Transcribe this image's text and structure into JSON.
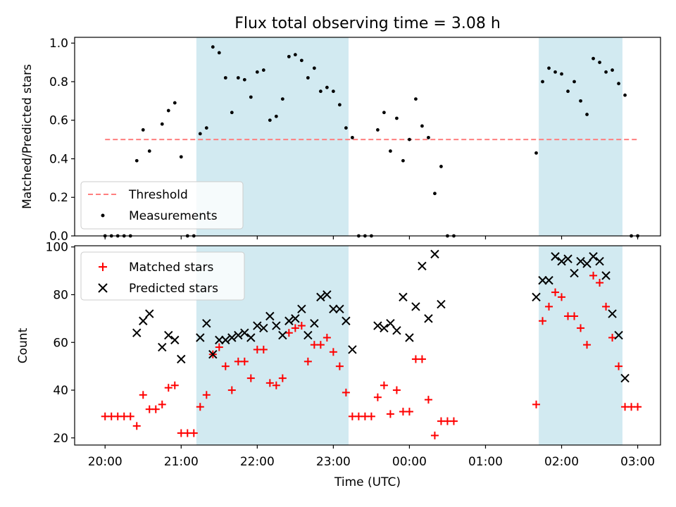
{
  "title": "Flux total observing time = 3.08 h",
  "colors": {
    "shade": "#add8e6",
    "threshold": "#ff7f7f",
    "matched": "#ff0000",
    "predicted": "#000000",
    "measurement": "#000000"
  },
  "chart_data": [
    {
      "type": "scatter",
      "panel": "top",
      "ylabel": "Matched/Predicted stars",
      "xlabel": "",
      "xlim_hours": [
        19.6,
        27.3
      ],
      "ylim": [
        0,
        1.03
      ],
      "yticks": [
        0.0,
        0.2,
        0.4,
        0.6,
        0.8,
        1.0
      ],
      "ytick_labels": [
        "0.0",
        "0.2",
        "0.4",
        "0.6",
        "0.8",
        "1.0"
      ],
      "grid": false,
      "legend_position": "lower-left",
      "shaded_spans": [
        {
          "start": "21:12",
          "end": "23:12"
        },
        {
          "start": "01:42",
          "end": "02:48"
        }
      ],
      "threshold": {
        "name": "Threshold",
        "value": 0.5,
        "x_start": "20:00",
        "x_end": "03:00",
        "style": "dashed"
      },
      "series": [
        {
          "name": "Measurements",
          "points": [
            [
              "20:00",
              0.0
            ],
            [
              "20:05",
              0.0
            ],
            [
              "20:10",
              0.0
            ],
            [
              "20:15",
              0.0
            ],
            [
              "20:20",
              0.0
            ],
            [
              "20:25",
              0.39
            ],
            [
              "20:30",
              0.55
            ],
            [
              "20:35",
              0.44
            ],
            [
              "20:45",
              0.58
            ],
            [
              "20:50",
              0.65
            ],
            [
              "20:55",
              0.69
            ],
            [
              "21:00",
              0.41
            ],
            [
              "21:05",
              0.0
            ],
            [
              "21:10",
              0.0
            ],
            [
              "21:15",
              0.53
            ],
            [
              "21:20",
              0.56
            ],
            [
              "21:25",
              0.98
            ],
            [
              "21:30",
              0.95
            ],
            [
              "21:35",
              0.82
            ],
            [
              "21:40",
              0.64
            ],
            [
              "21:45",
              0.82
            ],
            [
              "21:50",
              0.81
            ],
            [
              "21:55",
              0.72
            ],
            [
              "22:00",
              0.85
            ],
            [
              "22:05",
              0.86
            ],
            [
              "22:10",
              0.6
            ],
            [
              "22:15",
              0.62
            ],
            [
              "22:20",
              0.71
            ],
            [
              "22:25",
              0.93
            ],
            [
              "22:30",
              0.94
            ],
            [
              "22:35",
              0.91
            ],
            [
              "22:40",
              0.82
            ],
            [
              "22:45",
              0.87
            ],
            [
              "22:50",
              0.75
            ],
            [
              "22:55",
              0.77
            ],
            [
              "23:00",
              0.75
            ],
            [
              "23:05",
              0.68
            ],
            [
              "23:10",
              0.56
            ],
            [
              "23:15",
              0.51
            ],
            [
              "23:20",
              0.0
            ],
            [
              "23:25",
              0.0
            ],
            [
              "23:30",
              0.0
            ],
            [
              "23:35",
              0.55
            ],
            [
              "23:40",
              0.64
            ],
            [
              "23:45",
              0.44
            ],
            [
              "23:50",
              0.61
            ],
            [
              "23:55",
              0.39
            ],
            [
              "00:00",
              0.5
            ],
            [
              "00:05",
              0.71
            ],
            [
              "00:10",
              0.57
            ],
            [
              "00:15",
              0.51
            ],
            [
              "00:20",
              0.22
            ],
            [
              "00:25",
              0.36
            ],
            [
              "00:30",
              0.0
            ],
            [
              "00:35",
              0.0
            ],
            [
              "01:40",
              0.43
            ],
            [
              "01:45",
              0.8
            ],
            [
              "01:50",
              0.87
            ],
            [
              "01:55",
              0.85
            ],
            [
              "02:00",
              0.84
            ],
            [
              "02:05",
              0.75
            ],
            [
              "02:10",
              0.8
            ],
            [
              "02:15",
              0.7
            ],
            [
              "02:20",
              0.63
            ],
            [
              "02:25",
              0.92
            ],
            [
              "02:30",
              0.9
            ],
            [
              "02:35",
              0.85
            ],
            [
              "02:40",
              0.86
            ],
            [
              "02:45",
              0.79
            ],
            [
              "02:50",
              0.73
            ],
            [
              "02:55",
              0.0
            ],
            [
              "03:00",
              0.0
            ]
          ]
        }
      ]
    },
    {
      "type": "scatter",
      "panel": "bottom",
      "ylabel": "Count",
      "xlabel": "Time (UTC)",
      "xlim_hours": [
        19.6,
        27.3
      ],
      "ylim": [
        17,
        100.5
      ],
      "yticks": [
        20,
        40,
        60,
        80,
        100
      ],
      "ytick_labels": [
        "20",
        "40",
        "60",
        "80",
        "100"
      ],
      "xtick_labels": [
        "20:00",
        "21:00",
        "22:00",
        "23:00",
        "00:00",
        "01:00",
        "02:00",
        "03:00"
      ],
      "grid": false,
      "legend_position": "upper-left",
      "shaded_spans": [
        {
          "start": "21:12",
          "end": "23:12"
        },
        {
          "start": "01:42",
          "end": "02:48"
        }
      ],
      "series": [
        {
          "name": "Matched stars",
          "marker": "plus",
          "points": [
            [
              "20:00",
              29
            ],
            [
              "20:05",
              29
            ],
            [
              "20:10",
              29
            ],
            [
              "20:15",
              29
            ],
            [
              "20:20",
              29
            ],
            [
              "20:25",
              25
            ],
            [
              "20:30",
              38
            ],
            [
              "20:35",
              32
            ],
            [
              "20:40",
              32
            ],
            [
              "20:45",
              34
            ],
            [
              "20:50",
              41
            ],
            [
              "20:55",
              42
            ],
            [
              "21:00",
              22
            ],
            [
              "21:05",
              22
            ],
            [
              "21:10",
              22
            ],
            [
              "21:15",
              33
            ],
            [
              "21:20",
              38
            ],
            [
              "21:25",
              55
            ],
            [
              "21:30",
              58
            ],
            [
              "21:35",
              50
            ],
            [
              "21:40",
              40
            ],
            [
              "21:45",
              52
            ],
            [
              "21:50",
              52
            ],
            [
              "21:55",
              45
            ],
            [
              "22:00",
              57
            ],
            [
              "22:05",
              57
            ],
            [
              "22:10",
              43
            ],
            [
              "22:15",
              42
            ],
            [
              "22:20",
              45
            ],
            [
              "22:25",
              64
            ],
            [
              "22:30",
              66
            ],
            [
              "22:35",
              67
            ],
            [
              "22:40",
              52
            ],
            [
              "22:45",
              59
            ],
            [
              "22:50",
              59
            ],
            [
              "22:55",
              62
            ],
            [
              "23:00",
              56
            ],
            [
              "23:05",
              50
            ],
            [
              "23:10",
              39
            ],
            [
              "23:15",
              29
            ],
            [
              "23:20",
              29
            ],
            [
              "23:25",
              29
            ],
            [
              "23:30",
              29
            ],
            [
              "23:35",
              37
            ],
            [
              "23:40",
              42
            ],
            [
              "23:45",
              30
            ],
            [
              "23:50",
              40
            ],
            [
              "23:55",
              31
            ],
            [
              "00:00",
              31
            ],
            [
              "00:05",
              53
            ],
            [
              "00:10",
              53
            ],
            [
              "00:15",
              36
            ],
            [
              "00:20",
              21
            ],
            [
              "00:25",
              27
            ],
            [
              "00:30",
              27
            ],
            [
              "00:35",
              27
            ],
            [
              "01:40",
              34
            ],
            [
              "01:45",
              69
            ],
            [
              "01:50",
              75
            ],
            [
              "01:55",
              81
            ],
            [
              "02:00",
              79
            ],
            [
              "02:05",
              71
            ],
            [
              "02:10",
              71
            ],
            [
              "02:15",
              66
            ],
            [
              "02:20",
              59
            ],
            [
              "02:25",
              88
            ],
            [
              "02:30",
              85
            ],
            [
              "02:35",
              75
            ],
            [
              "02:40",
              62
            ],
            [
              "02:45",
              50
            ],
            [
              "02:50",
              33
            ],
            [
              "02:55",
              33
            ],
            [
              "03:00",
              33
            ]
          ]
        },
        {
          "name": "Predicted stars",
          "marker": "x",
          "points": [
            [
              "20:25",
              64
            ],
            [
              "20:30",
              69
            ],
            [
              "20:35",
              72
            ],
            [
              "20:45",
              58
            ],
            [
              "20:50",
              63
            ],
            [
              "20:55",
              61
            ],
            [
              "21:00",
              53
            ],
            [
              "21:15",
              62
            ],
            [
              "21:20",
              68
            ],
            [
              "21:25",
              55
            ],
            [
              "21:30",
              61
            ],
            [
              "21:35",
              61
            ],
            [
              "21:40",
              62
            ],
            [
              "21:45",
              63
            ],
            [
              "21:50",
              64
            ],
            [
              "21:55",
              62
            ],
            [
              "22:00",
              67
            ],
            [
              "22:05",
              66
            ],
            [
              "22:10",
              71
            ],
            [
              "22:15",
              67
            ],
            [
              "22:20",
              63
            ],
            [
              "22:25",
              69
            ],
            [
              "22:30",
              70
            ],
            [
              "22:35",
              74
            ],
            [
              "22:40",
              63
            ],
            [
              "22:45",
              68
            ],
            [
              "22:50",
              79
            ],
            [
              "22:55",
              80
            ],
            [
              "23:00",
              74
            ],
            [
              "23:05",
              74
            ],
            [
              "23:10",
              69
            ],
            [
              "23:15",
              57
            ],
            [
              "23:35",
              67
            ],
            [
              "23:40",
              66
            ],
            [
              "23:45",
              68
            ],
            [
              "23:50",
              65
            ],
            [
              "23:55",
              79
            ],
            [
              "00:00",
              62
            ],
            [
              "00:05",
              75
            ],
            [
              "00:10",
              92
            ],
            [
              "00:15",
              70
            ],
            [
              "00:20",
              97
            ],
            [
              "00:25",
              76
            ],
            [
              "01:40",
              79
            ],
            [
              "01:45",
              86
            ],
            [
              "01:50",
              86
            ],
            [
              "01:55",
              96
            ],
            [
              "02:00",
              94
            ],
            [
              "02:05",
              95
            ],
            [
              "02:10",
              89
            ],
            [
              "02:15",
              94
            ],
            [
              "02:20",
              93
            ],
            [
              "02:25",
              96
            ],
            [
              "02:30",
              94
            ],
            [
              "02:35",
              88
            ],
            [
              "02:40",
              72
            ],
            [
              "02:45",
              63
            ],
            [
              "02:50",
              45
            ]
          ]
        }
      ]
    }
  ]
}
